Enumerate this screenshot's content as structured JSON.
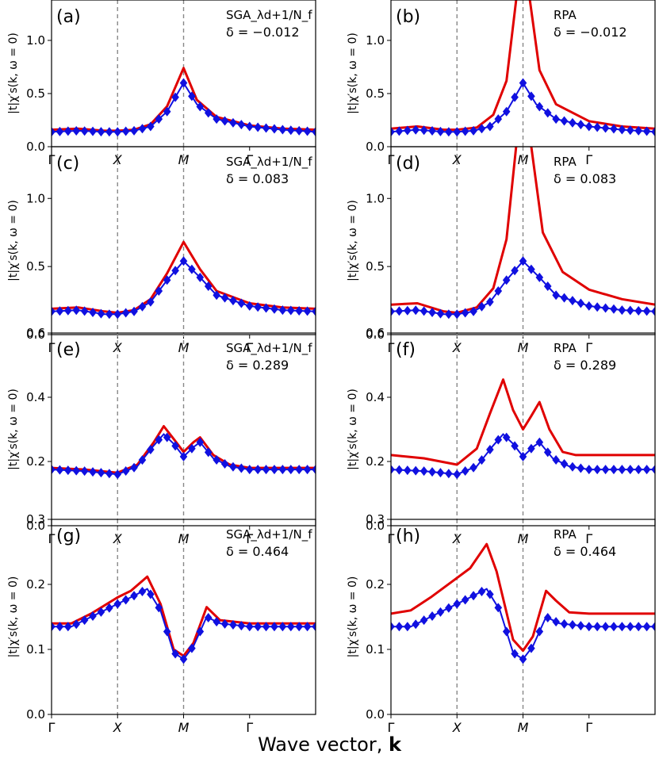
{
  "figure": {
    "xlabel_text": "Wave vector, ",
    "xlabel_bold": "k",
    "ylabel": "|t|χ′s(k, ω = 0)",
    "x_ticks": [
      "Γ",
      "X",
      "M",
      "Γ"
    ],
    "colors": {
      "sga": "#e00000",
      "rpa": "#e00000",
      "exact": "#1010e0",
      "dashed": "#888888"
    }
  },
  "chart_data": [
    {
      "type": "line",
      "panel": "(a)",
      "method": "SGA_λd+1/N_f",
      "delta": "δ = −0.012",
      "ylim": [
        0,
        1.38
      ],
      "yticks": [
        "0.0",
        "0.5",
        "1.0"
      ],
      "series": [
        {
          "kind": "line",
          "x": [
            0,
            0.4,
            0.8,
            1,
            1.25,
            1.5,
            1.75,
            2,
            2.2,
            2.5,
            3,
            3.5,
            4
          ],
          "y": [
            0.16,
            0.17,
            0.15,
            0.15,
            0.16,
            0.21,
            0.38,
            0.74,
            0.44,
            0.28,
            0.2,
            0.17,
            0.16
          ]
        },
        {
          "kind": "markers",
          "x": [
            0,
            0.4,
            0.8,
            1,
            1.25,
            1.5,
            1.75,
            2,
            2.2,
            2.5,
            3,
            3.5,
            4
          ],
          "y": [
            0.14,
            0.15,
            0.14,
            0.14,
            0.15,
            0.19,
            0.33,
            0.6,
            0.4,
            0.26,
            0.19,
            0.16,
            0.14
          ]
        }
      ]
    },
    {
      "type": "line",
      "panel": "(b)",
      "method": "RPA",
      "delta": "δ = −0.012",
      "ylim": [
        0,
        1.38
      ],
      "yticks": [
        "0.0",
        "0.5",
        "1.0"
      ],
      "series": [
        {
          "kind": "line",
          "x": [
            0,
            0.4,
            0.8,
            1,
            1.3,
            1.55,
            1.75,
            1.9,
            2,
            2.1,
            2.25,
            2.5,
            3,
            3.5,
            4
          ],
          "y": [
            0.17,
            0.19,
            0.16,
            0.16,
            0.18,
            0.3,
            0.62,
            1.4,
            1.4,
            1.4,
            0.72,
            0.4,
            0.24,
            0.19,
            0.17
          ]
        },
        {
          "kind": "markers",
          "x": [
            0,
            0.4,
            0.8,
            1,
            1.25,
            1.5,
            1.75,
            2,
            2.2,
            2.5,
            3,
            3.5,
            4
          ],
          "y": [
            0.14,
            0.16,
            0.14,
            0.14,
            0.15,
            0.19,
            0.33,
            0.6,
            0.4,
            0.26,
            0.19,
            0.16,
            0.14
          ]
        }
      ]
    },
    {
      "type": "line",
      "panel": "(c)",
      "method": "SGA_λd+1/N_f",
      "delta": "δ = 0.083",
      "ylim": [
        0,
        1.38
      ],
      "yticks": [
        "0.0",
        "0.5",
        "1.0"
      ],
      "series": [
        {
          "kind": "line",
          "x": [
            0,
            0.4,
            0.8,
            1,
            1.25,
            1.5,
            1.75,
            2,
            2.25,
            2.5,
            3,
            3.5,
            4
          ],
          "y": [
            0.19,
            0.2,
            0.17,
            0.16,
            0.18,
            0.26,
            0.45,
            0.68,
            0.48,
            0.32,
            0.23,
            0.2,
            0.19
          ]
        },
        {
          "kind": "markers",
          "x": [
            0,
            0.4,
            0.8,
            1,
            1.25,
            1.5,
            1.75,
            2,
            2.25,
            2.5,
            3,
            3.5,
            4
          ],
          "y": [
            0.17,
            0.18,
            0.15,
            0.15,
            0.17,
            0.24,
            0.4,
            0.54,
            0.42,
            0.29,
            0.21,
            0.18,
            0.17
          ]
        }
      ]
    },
    {
      "type": "line",
      "panel": "(d)",
      "method": "RPA",
      "delta": "δ = 0.083",
      "ylim": [
        0,
        1.38
      ],
      "yticks": [
        "0.0",
        "0.5",
        "1.0"
      ],
      "series": [
        {
          "kind": "line",
          "x": [
            0,
            0.4,
            0.8,
            1,
            1.3,
            1.55,
            1.75,
            1.9,
            2,
            2.12,
            2.3,
            2.6,
            3,
            3.5,
            4
          ],
          "y": [
            0.22,
            0.23,
            0.17,
            0.16,
            0.2,
            0.34,
            0.7,
            1.4,
            1.4,
            1.4,
            0.75,
            0.46,
            0.33,
            0.26,
            0.22
          ]
        },
        {
          "kind": "markers",
          "x": [
            0,
            0.4,
            0.8,
            1,
            1.25,
            1.5,
            1.75,
            2,
            2.25,
            2.5,
            3,
            3.5,
            4
          ],
          "y": [
            0.17,
            0.18,
            0.15,
            0.15,
            0.17,
            0.24,
            0.4,
            0.54,
            0.42,
            0.29,
            0.21,
            0.18,
            0.17
          ]
        }
      ]
    },
    {
      "type": "line",
      "panel": "(e)",
      "method": "SGA_λd+1/N_f",
      "delta": "δ = 0.289",
      "ylim": [
        0,
        0.6
      ],
      "yticks": [
        "0.0",
        "0.2",
        "0.4",
        "0.6"
      ],
      "series": [
        {
          "kind": "line",
          "x": [
            0,
            0.5,
            1,
            1.3,
            1.55,
            1.7,
            1.85,
            2,
            2.15,
            2.25,
            2.45,
            2.7,
            3,
            3.5,
            4
          ],
          "y": [
            0.18,
            0.175,
            0.165,
            0.19,
            0.26,
            0.31,
            0.27,
            0.23,
            0.26,
            0.275,
            0.22,
            0.19,
            0.18,
            0.18,
            0.18
          ]
        },
        {
          "kind": "markers",
          "x": [
            0,
            0.5,
            1,
            1.3,
            1.55,
            1.7,
            1.85,
            2,
            2.15,
            2.25,
            2.45,
            2.7,
            3,
            3.5,
            4
          ],
          "y": [
            0.175,
            0.17,
            0.16,
            0.185,
            0.25,
            0.285,
            0.255,
            0.215,
            0.245,
            0.26,
            0.21,
            0.185,
            0.175,
            0.175,
            0.175
          ]
        }
      ]
    },
    {
      "type": "line",
      "panel": "(f)",
      "method": "RPA",
      "delta": "δ = 0.289",
      "ylim": [
        0,
        0.6
      ],
      "yticks": [
        "0.0",
        "0.2",
        "0.4",
        "0.6"
      ],
      "series": [
        {
          "kind": "line",
          "x": [
            0,
            0.5,
            1,
            1.3,
            1.5,
            1.7,
            1.85,
            2,
            2.12,
            2.25,
            2.4,
            2.6,
            2.8,
            3,
            3.5,
            4
          ],
          "y": [
            0.22,
            0.21,
            0.19,
            0.24,
            0.35,
            0.455,
            0.36,
            0.3,
            0.34,
            0.385,
            0.3,
            0.23,
            0.22,
            0.22,
            0.22,
            0.22
          ]
        },
        {
          "kind": "markers",
          "x": [
            0,
            0.5,
            1,
            1.3,
            1.55,
            1.7,
            1.85,
            2,
            2.15,
            2.25,
            2.45,
            2.7,
            3,
            3.5,
            4
          ],
          "y": [
            0.175,
            0.17,
            0.16,
            0.185,
            0.25,
            0.285,
            0.255,
            0.215,
            0.245,
            0.26,
            0.21,
            0.185,
            0.175,
            0.175,
            0.175
          ]
        }
      ]
    },
    {
      "type": "line",
      "panel": "(g)",
      "method": "SGA_λd+1/N_f",
      "delta": "δ = 0.464",
      "ylim": [
        0,
        0.3
      ],
      "yticks": [
        "0.0",
        "0.1",
        "0.2",
        "0.3"
      ],
      "series": [
        {
          "kind": "line",
          "x": [
            0,
            0.3,
            0.6,
            1,
            1.2,
            1.45,
            1.65,
            1.85,
            2,
            2.15,
            2.35,
            2.55,
            3,
            3.5,
            4
          ],
          "y": [
            0.14,
            0.14,
            0.155,
            0.18,
            0.19,
            0.212,
            0.17,
            0.1,
            0.09,
            0.11,
            0.165,
            0.145,
            0.14,
            0.14,
            0.14
          ]
        },
        {
          "kind": "markers",
          "x": [
            0,
            0.3,
            0.6,
            1,
            1.2,
            1.45,
            1.65,
            1.85,
            2,
            2.15,
            2.35,
            2.55,
            3,
            3.5,
            4
          ],
          "y": [
            0.135,
            0.135,
            0.15,
            0.17,
            0.18,
            0.193,
            0.16,
            0.095,
            0.085,
            0.105,
            0.15,
            0.14,
            0.135,
            0.135,
            0.135
          ]
        }
      ]
    },
    {
      "type": "line",
      "panel": "(h)",
      "method": "RPA",
      "delta": "δ = 0.464",
      "ylim": [
        0,
        0.3
      ],
      "yticks": [
        "0.0",
        "0.1",
        "0.2",
        "0.3"
      ],
      "series": [
        {
          "kind": "line",
          "x": [
            0,
            0.3,
            0.6,
            1,
            1.2,
            1.45,
            1.6,
            1.85,
            2,
            2.15,
            2.35,
            2.5,
            2.7,
            3,
            3.5,
            4
          ],
          "y": [
            0.155,
            0.16,
            0.18,
            0.21,
            0.225,
            0.262,
            0.22,
            0.115,
            0.098,
            0.12,
            0.19,
            0.175,
            0.157,
            0.155,
            0.155,
            0.155
          ]
        },
        {
          "kind": "markers",
          "x": [
            0,
            0.3,
            0.6,
            1,
            1.2,
            1.45,
            1.65,
            1.85,
            2,
            2.15,
            2.35,
            2.55,
            3,
            3.5,
            4
          ],
          "y": [
            0.135,
            0.135,
            0.15,
            0.17,
            0.18,
            0.193,
            0.16,
            0.095,
            0.085,
            0.105,
            0.15,
            0.14,
            0.135,
            0.135,
            0.135
          ]
        }
      ]
    }
  ]
}
